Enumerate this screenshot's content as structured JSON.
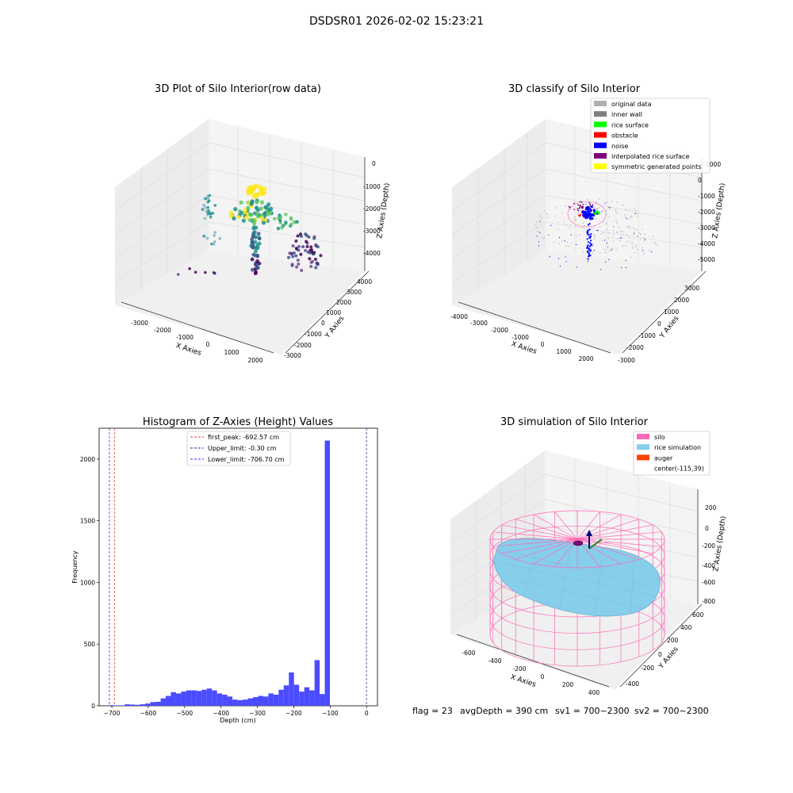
{
  "suptitle": "DSDSR01 2026-02-02 15:23:21",
  "footer": {
    "flag": "flag = 23",
    "avgdepth": "avgDepth = 390 cm",
    "sv1": "sv1 = 700~2300",
    "sv2": "sv2 = 700~2300"
  },
  "chart_data": [
    {
      "type": "scatter",
      "title": "3D Plot of Silo Interior(row data)",
      "xlabel": "X Axies",
      "ylabel": "Y Axies",
      "zlabel": "Z Axies (Depth)",
      "x_ticks": [
        "-3000",
        "-2000",
        "-1000",
        "0",
        "1000",
        "2000"
      ],
      "y_ticks": [
        "-3000",
        "-2000",
        "-1000",
        "0",
        "1000",
        "2000",
        "3000",
        "4000"
      ],
      "z_ticks": [
        "0",
        "-1000",
        "-2000",
        "-3000",
        "-4000"
      ],
      "colormap": [
        "#440154",
        "#3b528b",
        "#21918c",
        "#5ec962",
        "#fde725"
      ]
    },
    {
      "type": "scatter",
      "title": "3D classify of Silo Interior",
      "xlabel": "X Axies",
      "ylabel": "Y Axies",
      "zlabel": "Z Axies (Depth)",
      "x_ticks": [
        "-4000",
        "-3000",
        "-2000",
        "-1000",
        "0",
        "1000",
        "2000"
      ],
      "y_ticks": [
        "-3000",
        "-2000",
        "-1000",
        "0",
        "1000",
        "2000",
        "3000"
      ],
      "z_ticks": [
        "1000",
        "0",
        "-1000",
        "-2000",
        "-3000",
        "-4000",
        "-5000"
      ],
      "legend_position": "top-right",
      "legend": [
        {
          "label": "original data",
          "color": "#b0b0b0"
        },
        {
          "label": "inner wall",
          "color": "#808080"
        },
        {
          "label": "rice surface",
          "color": "#00ff00"
        },
        {
          "label": "obstacle",
          "color": "#ff0000"
        },
        {
          "label": "noise",
          "color": "#0000ff"
        },
        {
          "label": "interpolated rice surface",
          "color": "#800080"
        },
        {
          "label": "symmetric generated points",
          "color": "#ffff00"
        }
      ]
    },
    {
      "type": "bar",
      "title": "Histogram of Z-Axies (Height) Values",
      "xlabel": "Depth (cm)",
      "ylabel": "Frequency",
      "xlim": [
        -735,
        30
      ],
      "ylim": [
        0,
        2250
      ],
      "x_ticks": [
        -700,
        -600,
        -500,
        -400,
        -300,
        -200,
        -100,
        0
      ],
      "y_ticks": [
        0,
        500,
        1000,
        1500,
        2000
      ],
      "bar_color": "#4b4bff",
      "bin_start": -707,
      "bin_width": 14.1,
      "values": [
        5,
        3,
        4,
        12,
        10,
        8,
        12,
        18,
        30,
        32,
        60,
        80,
        110,
        100,
        115,
        125,
        125,
        120,
        130,
        140,
        125,
        100,
        90,
        75,
        50,
        45,
        50,
        60,
        70,
        80,
        75,
        100,
        90,
        130,
        165,
        270,
        170,
        115,
        150,
        125,
        370,
        95,
        2150
      ],
      "vlines": [
        {
          "label": "first_peak: -692.57 cm",
          "x": -692.57,
          "color": "#e04040"
        },
        {
          "label": "Upper_limit: -0.30 cm",
          "x": -0.3,
          "color": "#303090"
        },
        {
          "label": "Lower_limit: -706.70 cm",
          "x": -706.7,
          "color": "#3030ff"
        }
      ],
      "legend_position": "top-center"
    },
    {
      "type": "area",
      "title": "3D simulation of Silo Interior",
      "xlabel": "X Axies",
      "ylabel": "Y Axies",
      "zlabel": "Z Axies (Depth)",
      "x_ticks": [
        "-600",
        "-400",
        "-200",
        "0",
        "200",
        "400"
      ],
      "y_ticks": [
        "-400",
        "-200",
        "0",
        "200",
        "400",
        "600"
      ],
      "z_ticks": [
        "200",
        "0",
        "-200",
        "-400",
        "-600",
        "-800"
      ],
      "legend_position": "top-right",
      "legend": [
        {
          "label": "silo",
          "color": "#ff69b4"
        },
        {
          "label": "rice simulation",
          "color": "#87ceeb"
        },
        {
          "label": "auger",
          "color": "#ff4500"
        },
        {
          "label": "center(-115,39)",
          "color": ""
        }
      ]
    }
  ]
}
